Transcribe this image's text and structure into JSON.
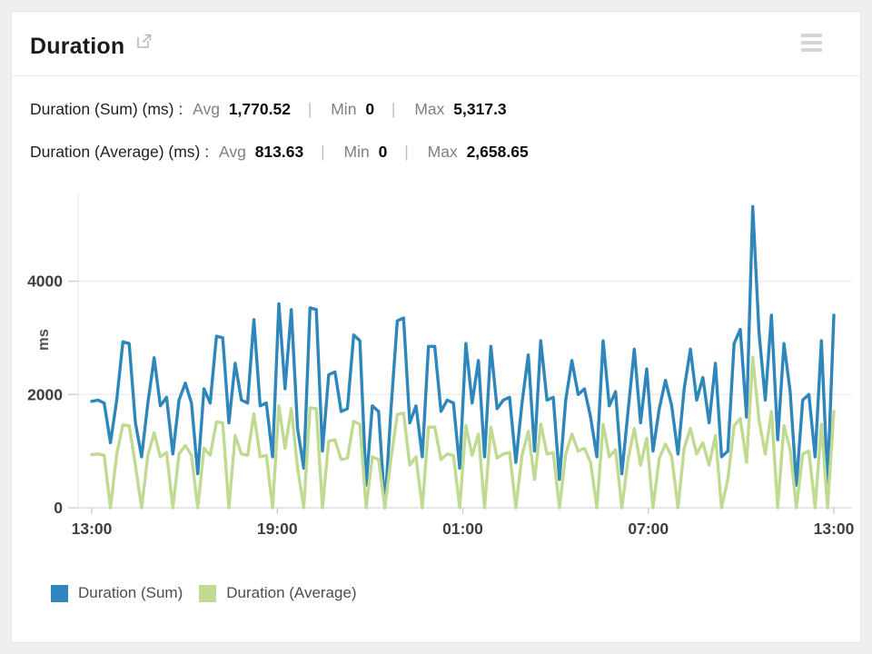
{
  "widget": {
    "title": "Duration",
    "open_icon": "external-link",
    "menu_icon": "hamburger-menu"
  },
  "stats": [
    {
      "name": "Duration (Sum) (ms) :",
      "avg_label": "Avg",
      "avg_value": "1,770.52",
      "sep": "|",
      "min_label": "Min",
      "min_value": "0",
      "max_label": "Max",
      "max_value": "5,317.3"
    },
    {
      "name": "Duration (Average) (ms) :",
      "avg_label": "Avg",
      "avg_value": "813.63",
      "sep": "|",
      "min_label": "Min",
      "min_value": "0",
      "max_label": "Max",
      "max_value": "2,658.65"
    }
  ],
  "legend": [
    {
      "label": "Duration (Sum)",
      "color": "#2e86ba"
    },
    {
      "label": "Duration (Average)",
      "color": "#c0da92"
    }
  ],
  "chart_data": {
    "type": "line",
    "title": "Duration",
    "ylabel": "ms",
    "xlabel": "",
    "x_tick_labels": [
      "13:00",
      "19:00",
      "01:00",
      "07:00",
      "13:00"
    ],
    "x_range_hours": 24,
    "y_ticks": [
      0,
      2000,
      4000
    ],
    "ylim": [
      0,
      5620
    ],
    "grid": "horizontal-only",
    "legend_position": "bottom-left",
    "series": [
      {
        "name": "Duration (Sum)",
        "unit": "ms",
        "color": "#2e86ba",
        "avg": 1770.52,
        "min": 0,
        "max": 5317.3,
        "values": [
          1880,
          1900,
          1850,
          1150,
          1900,
          2930,
          2900,
          1500,
          900,
          1850,
          2650,
          1800,
          1950,
          950,
          1900,
          2200,
          1850,
          600,
          2100,
          1850,
          3030,
          3000,
          1500,
          2550,
          1900,
          1850,
          3320,
          1800,
          1850,
          900,
          3600,
          2100,
          3500,
          1400,
          700,
          3530,
          3500,
          1000,
          2350,
          2400,
          1700,
          1750,
          3050,
          2950,
          400,
          1800,
          1700,
          0,
          1750,
          3300,
          3350,
          1500,
          1800,
          900,
          2850,
          2850,
          1700,
          1900,
          1850,
          700,
          2900,
          1850,
          2600,
          900,
          2850,
          1750,
          1900,
          1950,
          800,
          1850,
          2700,
          1000,
          2950,
          1900,
          1950,
          500,
          1900,
          2600,
          2000,
          2100,
          1600,
          900,
          2950,
          1800,
          2050,
          600,
          1700,
          2800,
          1500,
          2450,
          1000,
          1750,
          2250,
          1800,
          950,
          2100,
          2800,
          1900,
          2300,
          1500,
          2550,
          900,
          1000,
          2900,
          3150,
          1600,
          5317.3,
          3100,
          1900,
          3400,
          1200,
          2900,
          2050,
          400,
          1900,
          2000,
          900,
          2950,
          450,
          3400
        ]
      },
      {
        "name": "Duration (Average)",
        "unit": "ms",
        "color": "#c0da92",
        "avg": 813.63,
        "min": 0,
        "max": 2658.65,
        "values": [
          940,
          950,
          925,
          0,
          950,
          1465,
          1450,
          750,
          0,
          925,
          1325,
          900,
          975,
          0,
          950,
          1100,
          925,
          0,
          1050,
          925,
          1515,
          1500,
          0,
          1275,
          950,
          925,
          1660,
          900,
          925,
          0,
          1800,
          1050,
          1750,
          700,
          0,
          1765,
          1750,
          0,
          1175,
          1200,
          850,
          875,
          1525,
          1475,
          0,
          900,
          850,
          0,
          875,
          1650,
          1675,
          750,
          900,
          0,
          1425,
          1425,
          850,
          950,
          925,
          0,
          1450,
          925,
          1300,
          0,
          1425,
          875,
          950,
          975,
          0,
          925,
          1350,
          500,
          1475,
          950,
          975,
          0,
          950,
          1300,
          1000,
          1050,
          800,
          0,
          1475,
          900,
          1025,
          0,
          850,
          1400,
          750,
          1225,
          0,
          875,
          1125,
          900,
          0,
          1050,
          1400,
          950,
          1150,
          750,
          1275,
          0,
          500,
          1450,
          1575,
          800,
          2658.65,
          1550,
          950,
          1700,
          0,
          1450,
          1025,
          0,
          950,
          1000,
          0,
          1475,
          0,
          1700
        ]
      }
    ]
  }
}
